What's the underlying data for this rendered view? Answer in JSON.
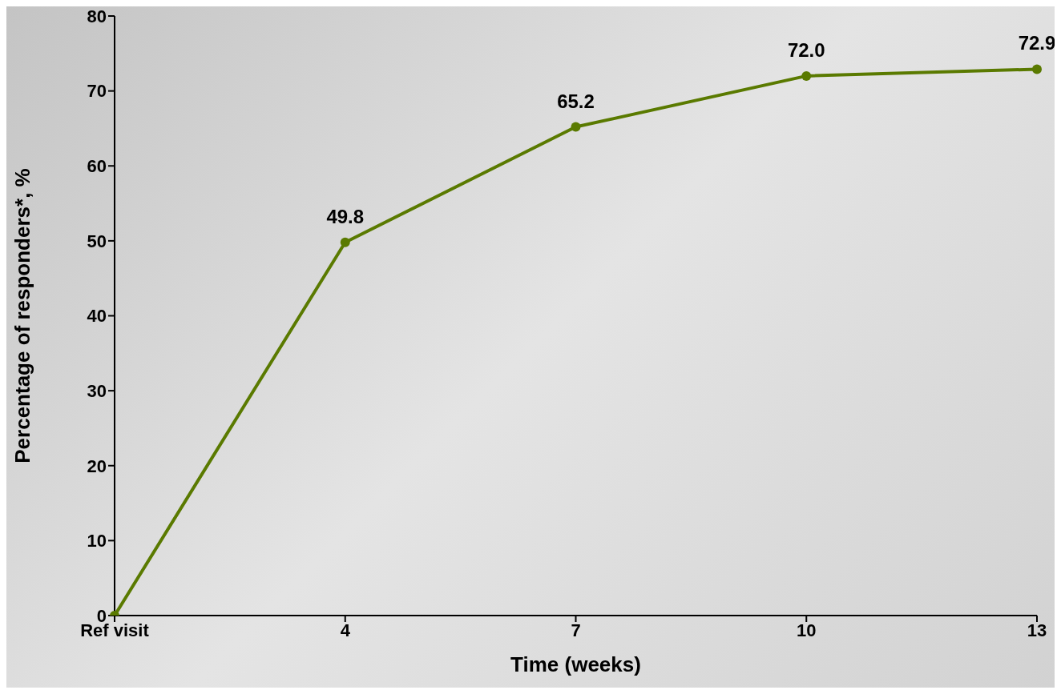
{
  "chart_data": {
    "type": "line",
    "xlabel": "Time (weeks)",
    "ylabel": "Percentage of responders*, %",
    "categories": [
      "Ref visit",
      "4",
      "7",
      "10",
      "13"
    ],
    "series": [
      {
        "color": "#5a7a00",
        "values": [
          0,
          49.8,
          65.2,
          72.0,
          72.9
        ],
        "value_labels": [
          null,
          "49.8",
          "65.2",
          "72.0",
          "72.9"
        ]
      }
    ],
    "ylim": [
      0,
      80
    ],
    "yticks": [
      0,
      10,
      20,
      30,
      40,
      50,
      60,
      70,
      80
    ],
    "marker": "circle",
    "line_style": "solid"
  }
}
